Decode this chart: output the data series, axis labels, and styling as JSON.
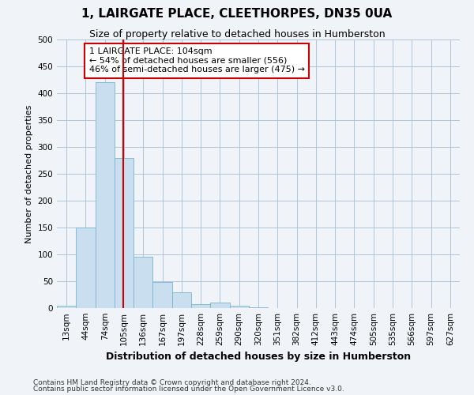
{
  "title": "1, LAIRGATE PLACE, CLEETHORPES, DN35 0UA",
  "subtitle": "Size of property relative to detached houses in Humberston",
  "xlabel": "Distribution of detached houses by size in Humberston",
  "ylabel": "Number of detached properties",
  "footnote1": "Contains HM Land Registry data © Crown copyright and database right 2024.",
  "footnote2": "Contains public sector information licensed under the Open Government Licence v3.0.",
  "bar_labels": [
    "13sqm",
    "44sqm",
    "74sqm",
    "105sqm",
    "136sqm",
    "167sqm",
    "197sqm",
    "228sqm",
    "259sqm",
    "290sqm",
    "320sqm",
    "351sqm",
    "382sqm",
    "412sqm",
    "443sqm",
    "474sqm",
    "505sqm",
    "535sqm",
    "566sqm",
    "597sqm",
    "627sqm"
  ],
  "bar_values": [
    5,
    150,
    420,
    280,
    95,
    48,
    30,
    7,
    10,
    5,
    2,
    0,
    0,
    0,
    0,
    0,
    0,
    0,
    0,
    0,
    0
  ],
  "bar_color": "#c9dff0",
  "bar_edge_color": "#7ab3d0",
  "background_color": "#f0f4f8",
  "grid_color": "#b0c4d8",
  "ylim": [
    0,
    500
  ],
  "yticks": [
    0,
    50,
    100,
    150,
    200,
    250,
    300,
    350,
    400,
    450,
    500
  ],
  "property_line_x": 2.97,
  "property_line_color": "#cc0000",
  "annotation_text": "1 LAIRGATE PLACE: 104sqm\n← 54% of detached houses are smaller (556)\n46% of semi-detached houses are larger (475) →",
  "annotation_box_color": "#ffffff",
  "annotation_box_edge": "#cc0000",
  "title_fontsize": 11,
  "subtitle_fontsize": 9,
  "ylabel_fontsize": 8,
  "xlabel_fontsize": 9,
  "tick_fontsize": 7.5,
  "annot_fontsize": 8
}
